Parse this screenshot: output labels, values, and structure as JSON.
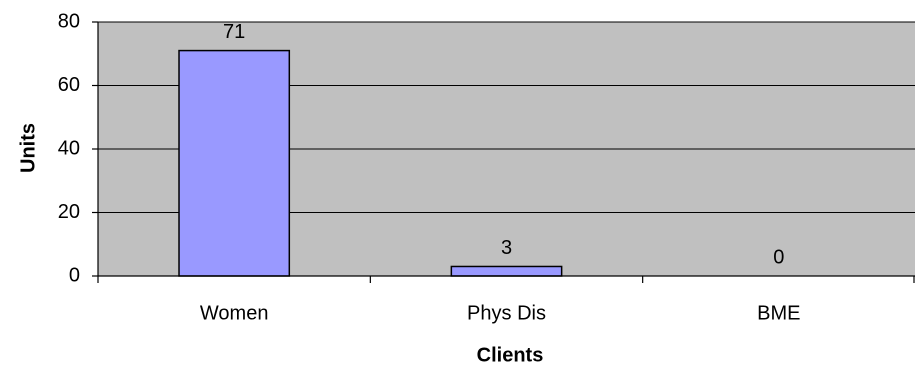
{
  "chart_data": {
    "type": "bar",
    "title": "",
    "xlabel": "Clients",
    "ylabel": "Units",
    "categories": [
      "Women",
      "Phys Dis",
      "BME"
    ],
    "values": [
      71,
      3,
      0
    ],
    "data_labels": [
      "71",
      "3",
      "0"
    ],
    "ylim": [
      0,
      80
    ],
    "yticks": [
      0,
      20,
      40,
      60,
      80
    ],
    "ytick_labels": [
      "0",
      "20",
      "40",
      "60",
      "80"
    ],
    "grid": true,
    "legend": "none",
    "colors": {
      "plot_background": "#c0c0c0",
      "bar_fill": "#9999ff",
      "bar_stroke": "#000000",
      "gridline": "#000000"
    }
  }
}
